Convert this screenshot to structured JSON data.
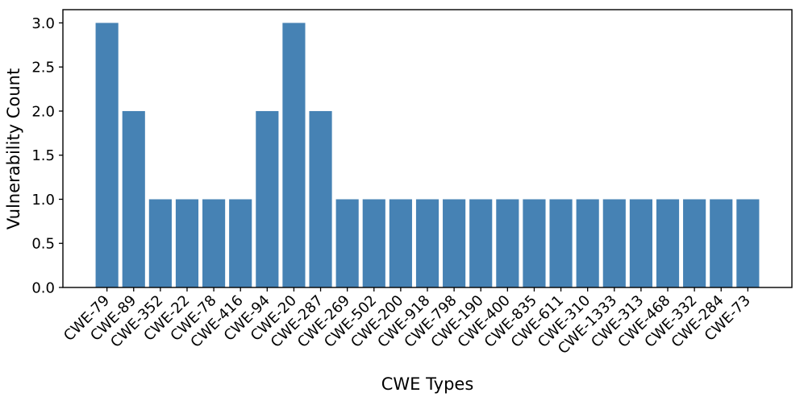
{
  "chart_data": {
    "type": "bar",
    "title": "",
    "xlabel": "CWE Types",
    "ylabel": "Vulnerability Count",
    "categories": [
      "CWE-79",
      "CWE-89",
      "CWE-352",
      "CWE-22",
      "CWE-78",
      "CWE-416",
      "CWE-94",
      "CWE-20",
      "CWE-287",
      "CWE-269",
      "CWE-502",
      "CWE-200",
      "CWE-918",
      "CWE-798",
      "CWE-190",
      "CWE-400",
      "CWE-835",
      "CWE-611",
      "CWE-310",
      "CWE-1333",
      "CWE-313",
      "CWE-468",
      "CWE-332",
      "CWE-284",
      "CWE-73"
    ],
    "values": [
      3,
      2,
      1,
      1,
      1,
      1,
      2,
      3,
      2,
      1,
      1,
      1,
      1,
      1,
      1,
      1,
      1,
      1,
      1,
      1,
      1,
      1,
      1,
      1,
      1
    ],
    "yticks": [
      0.0,
      0.5,
      1.0,
      1.5,
      2.0,
      2.5,
      3.0
    ],
    "ylim": [
      0,
      3.15
    ],
    "xtick_rotation": 45,
    "grid": false,
    "legend_position": "none",
    "bar_color": "#4682B4",
    "axis_color": "#000000"
  }
}
